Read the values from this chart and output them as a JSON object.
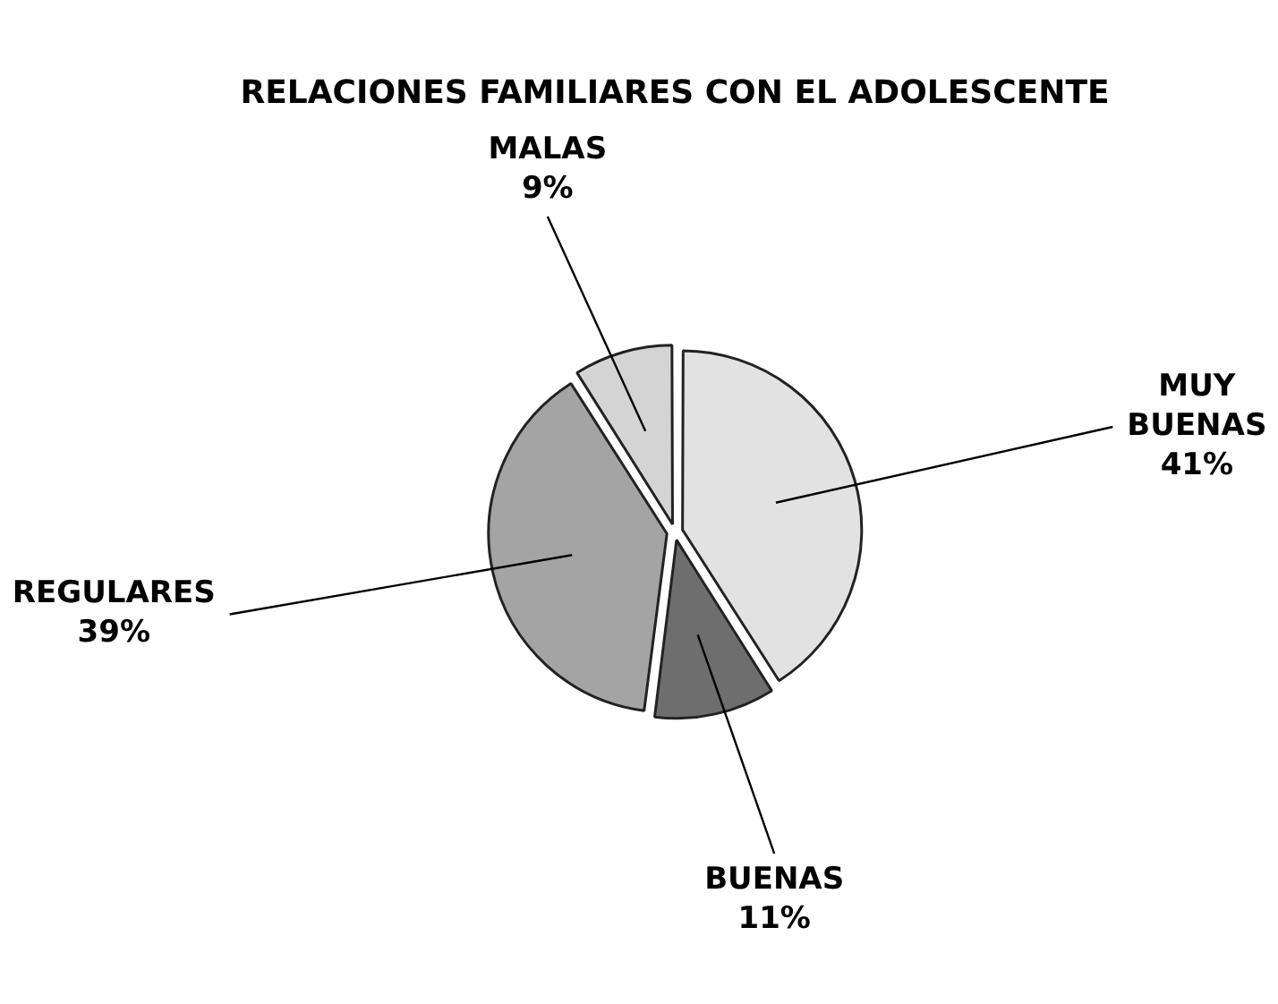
{
  "chart_data": {
    "type": "pie",
    "title": "RELACIONES FAMILIARES CON EL ADOLESCENTE",
    "categories": [
      "MUY BUENAS",
      "BUENAS",
      "REGULARES",
      "MALAS"
    ],
    "values": [
      41,
      11,
      39,
      9
    ],
    "value_labels": [
      "41%",
      "11%",
      "39%",
      "9%"
    ],
    "colors": [
      "#e2e2e2",
      "#6e6e6e",
      "#a4a4a4",
      "#d4d4d4"
    ],
    "legend": false
  }
}
